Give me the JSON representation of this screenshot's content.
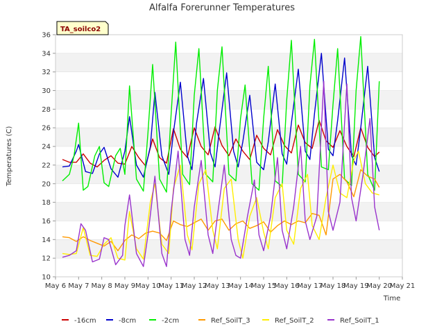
{
  "chart_data": {
    "type": "line",
    "title": "Alfalfa Forerunner Temperatures",
    "xlabel": "Time",
    "ylabel": "Temperatures (C)",
    "tag_label": "TA_soilco2",
    "xlim": [
      6,
      21
    ],
    "ylim": [
      10,
      36
    ],
    "x_ticks": [
      6,
      7,
      8,
      9,
      10,
      11,
      12,
      13,
      14,
      15,
      16,
      17,
      18,
      19,
      20,
      21
    ],
    "x_tick_labels": [
      "May 6",
      "May 7",
      "May 8",
      "May 9",
      "May 10",
      "May 11",
      "May 12",
      "May 13",
      "May 14",
      "May 15",
      "May 16",
      "May 17",
      "May 18",
      "May 19",
      "May 20",
      "May 21"
    ],
    "y_ticks": [
      10,
      12,
      14,
      16,
      18,
      20,
      22,
      24,
      26,
      28,
      30,
      32,
      34,
      36
    ],
    "y_tick_labels": [
      "10",
      "12",
      "14",
      "16",
      "18",
      "20",
      "22",
      "24",
      "26",
      "28",
      "30",
      "32",
      "34",
      "36"
    ],
    "grid": "horizontal alternating bands",
    "legend_position": "bottom",
    "series": [
      {
        "name": "-16cm",
        "color": "#cc0000",
        "x": [
          6.3,
          6.6,
          6.9,
          7.2,
          7.5,
          7.8,
          8.1,
          8.4,
          8.7,
          9.0,
          9.3,
          9.6,
          9.9,
          10.2,
          10.5,
          10.8,
          11.1,
          11.4,
          11.7,
          12.0,
          12.3,
          12.6,
          12.9,
          13.2,
          13.5,
          13.8,
          14.1,
          14.4,
          14.7,
          15.0,
          15.3,
          15.6,
          15.9,
          16.2,
          16.5,
          16.8,
          17.1,
          17.4,
          17.7,
          18.0,
          18.3,
          18.6,
          18.9,
          19.2,
          19.5,
          19.8,
          20.0
        ],
        "y": [
          22.6,
          22.3,
          22.3,
          23.2,
          22.2,
          21.8,
          22.5,
          23.0,
          22.2,
          22.1,
          24.0,
          22.8,
          21.9,
          24.8,
          22.8,
          22.2,
          25.9,
          23.7,
          22.8,
          26.0,
          24.0,
          23.1,
          26.1,
          24.1,
          23.0,
          24.8,
          23.5,
          22.6,
          25.2,
          23.8,
          23.1,
          25.8,
          24.1,
          23.3,
          26.3,
          24.4,
          23.8,
          26.8,
          24.6,
          23.9,
          25.7,
          24.0,
          22.9,
          26.0,
          23.9,
          22.9,
          23.4
        ]
      },
      {
        "name": "-8cm",
        "color": "#0000cc",
        "x": [
          6.3,
          6.6,
          6.9,
          7.0,
          7.3,
          7.6,
          7.9,
          8.1,
          8.4,
          8.7,
          9.0,
          9.2,
          9.5,
          9.8,
          10.1,
          10.3,
          10.6,
          10.9,
          11.1,
          11.4,
          11.7,
          11.9,
          12.1,
          12.4,
          12.7,
          12.9,
          13.1,
          13.4,
          13.7,
          13.9,
          14.1,
          14.4,
          14.7,
          15.0,
          15.2,
          15.5,
          15.8,
          16.0,
          16.2,
          16.5,
          16.8,
          17.0,
          17.2,
          17.5,
          17.8,
          18.0,
          18.2,
          18.5,
          18.8,
          19.0,
          19.2,
          19.5,
          19.8,
          20.0
        ],
        "y": [
          21.8,
          21.9,
          23.5,
          24.2,
          21.3,
          21.1,
          23.2,
          23.9,
          21.6,
          20.7,
          23.5,
          27.2,
          22.0,
          20.7,
          24.0,
          29.8,
          23.0,
          21.0,
          25.5,
          30.9,
          23.0,
          21.5,
          26.5,
          31.3,
          23.3,
          21.8,
          26.0,
          31.9,
          23.5,
          21.8,
          24.5,
          29.5,
          22.3,
          21.5,
          24.5,
          30.7,
          23.2,
          22.1,
          26.5,
          32.3,
          23.5,
          22.6,
          27.5,
          34.0,
          23.7,
          23.0,
          26.8,
          33.5,
          23.0,
          22.0,
          26.0,
          32.6,
          22.8,
          21.3
        ]
      },
      {
        "name": "-2cm",
        "color": "#00ee00",
        "x": [
          6.3,
          6.6,
          6.8,
          7.0,
          7.2,
          7.4,
          7.7,
          7.9,
          8.1,
          8.3,
          8.6,
          8.8,
          9.0,
          9.2,
          9.5,
          9.8,
          10.0,
          10.2,
          10.5,
          10.8,
          11.0,
          11.2,
          11.5,
          11.8,
          12.0,
          12.2,
          12.5,
          12.8,
          13.0,
          13.2,
          13.5,
          13.8,
          14.0,
          14.2,
          14.5,
          14.8,
          15.0,
          15.2,
          15.5,
          15.8,
          16.0,
          16.2,
          16.5,
          16.8,
          17.0,
          17.2,
          17.5,
          17.8,
          18.0,
          18.2,
          18.5,
          18.8,
          19.0,
          19.2,
          19.5,
          19.8,
          20.0
        ],
        "y": [
          20.3,
          21.0,
          23.0,
          26.5,
          19.3,
          19.7,
          23.0,
          24.0,
          20.1,
          19.7,
          23.0,
          23.8,
          21.0,
          30.5,
          20.5,
          19.2,
          25.5,
          32.8,
          20.5,
          19.1,
          27.5,
          35.2,
          21.0,
          19.9,
          29.5,
          34.5,
          21.0,
          20.2,
          30.0,
          34.7,
          21.0,
          20.3,
          27.0,
          30.6,
          20.0,
          19.3,
          27.0,
          32.6,
          20.3,
          19.7,
          29.0,
          35.4,
          21.0,
          20.2,
          30.5,
          35.5,
          21.8,
          21.5,
          28.5,
          34.5,
          20.5,
          19.8,
          30.0,
          35.8,
          21.0,
          19.3,
          31.0
        ]
      },
      {
        "name": "Ref_SoilT_3",
        "color": "#ff9900",
        "x": [
          6.3,
          6.6,
          6.9,
          7.2,
          7.5,
          7.8,
          8.1,
          8.4,
          8.7,
          9.0,
          9.3,
          9.6,
          9.9,
          10.2,
          10.5,
          10.8,
          11.1,
          11.4,
          11.7,
          12.0,
          12.3,
          12.6,
          12.9,
          13.2,
          13.5,
          13.8,
          14.1,
          14.4,
          14.7,
          15.0,
          15.3,
          15.6,
          15.9,
          16.2,
          16.5,
          16.8,
          17.1,
          17.4,
          17.7,
          18.0,
          18.3,
          18.6,
          18.9,
          19.2,
          19.5,
          19.8,
          20.0
        ],
        "y": [
          14.3,
          14.2,
          13.8,
          14.3,
          13.9,
          13.6,
          13.3,
          13.8,
          12.8,
          13.9,
          14.5,
          14.1,
          14.7,
          14.9,
          14.7,
          13.9,
          16.0,
          15.6,
          15.4,
          15.8,
          16.2,
          15.0,
          16.0,
          16.2,
          15.0,
          15.7,
          16.0,
          15.2,
          15.5,
          15.9,
          14.8,
          15.5,
          16.0,
          15.6,
          16.0,
          15.8,
          16.8,
          16.6,
          14.5,
          20.5,
          21.0,
          20.2,
          18.6,
          21.5,
          20.8,
          20.5,
          19.6
        ]
      },
      {
        "name": "Ref_SoilT_2",
        "color": "#ffee00",
        "x": [
          6.3,
          6.6,
          6.9,
          7.2,
          7.5,
          7.8,
          8.1,
          8.4,
          8.7,
          9.0,
          9.2,
          9.5,
          9.8,
          10.1,
          10.3,
          10.6,
          10.9,
          11.1,
          11.4,
          11.7,
          11.9,
          12.2,
          12.5,
          12.8,
          13.0,
          13.3,
          13.6,
          13.9,
          14.1,
          14.4,
          14.7,
          15.0,
          15.2,
          15.5,
          15.8,
          16.0,
          16.3,
          16.6,
          16.9,
          17.1,
          17.4,
          17.7,
          18.0,
          18.3,
          18.6,
          18.9,
          19.1,
          19.4,
          19.7,
          20.0
        ],
        "y": [
          12.5,
          12.4,
          12.5,
          15.3,
          12.3,
          12.2,
          13.5,
          14.2,
          12.0,
          11.8,
          17.0,
          13.0,
          11.9,
          18.0,
          20.0,
          13.5,
          12.5,
          19.5,
          22.0,
          14.5,
          12.9,
          20.0,
          21.5,
          15.0,
          13.0,
          19.5,
          20.5,
          14.0,
          12.0,
          16.5,
          18.5,
          14.8,
          13.0,
          18.5,
          20.0,
          15.0,
          13.5,
          19.5,
          21.0,
          15.5,
          14.0,
          18.5,
          22.0,
          19.0,
          18.5,
          22.5,
          23.5,
          20.0,
          19.0,
          18.8
        ]
      },
      {
        "name": "Ref_SoilT_1",
        "color": "#9933cc",
        "x": [
          6.3,
          6.6,
          6.9,
          7.1,
          7.3,
          7.6,
          7.9,
          8.1,
          8.3,
          8.6,
          8.9,
          9.0,
          9.2,
          9.5,
          9.8,
          10.0,
          10.3,
          10.6,
          10.8,
          11.0,
          11.3,
          11.6,
          11.8,
          12.0,
          12.3,
          12.6,
          12.8,
          13.0,
          13.3,
          13.6,
          13.8,
          14.0,
          14.3,
          14.6,
          14.8,
          15.0,
          15.3,
          15.6,
          15.8,
          16.0,
          16.3,
          16.6,
          16.8,
          17.0,
          17.3,
          17.6,
          17.8,
          18.0,
          18.3,
          18.6,
          18.8,
          19.0,
          19.3,
          19.6,
          19.8,
          20.0
        ],
        "y": [
          12.1,
          12.3,
          12.8,
          15.7,
          15.0,
          11.6,
          11.9,
          14.2,
          14.0,
          11.3,
          12.3,
          15.5,
          18.8,
          12.5,
          11.1,
          14.5,
          20.8,
          12.5,
          11.1,
          17.0,
          23.5,
          14.0,
          12.3,
          17.5,
          22.5,
          14.5,
          12.5,
          16.5,
          22.0,
          14.0,
          12.3,
          12.0,
          16.5,
          20.4,
          14.5,
          12.8,
          16.5,
          22.8,
          15.0,
          13.0,
          17.5,
          24.0,
          16.0,
          14.0,
          16.5,
          31.0,
          17.0,
          15.0,
          18.0,
          30.7,
          18.5,
          16.0,
          21.0,
          27.0,
          17.5,
          15.0
        ]
      }
    ]
  }
}
